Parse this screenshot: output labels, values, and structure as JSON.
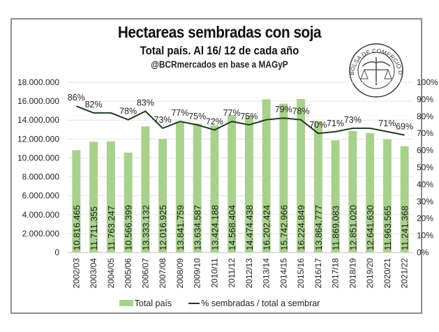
{
  "chart_data": {
    "type": "bar+line",
    "title": "Hectareas sembradas con soja",
    "subtitle": "Total país. Al 16/ 12 de cada año",
    "source": "@BCRmercados en base a MAGyP",
    "logo_text": "BOLSA DE COMERCIO DE ROSARIO",
    "categories": [
      "2002/03",
      "2003/04",
      "2004/05",
      "2005/06",
      "2006/07",
      "2007/08",
      "2008/09",
      "2009/10",
      "2010/11",
      "2011/12",
      "2012/13",
      "2013/14",
      "2014/15",
      "2015/16",
      "2016/17",
      "2017/18",
      "2018/19",
      "2019/20",
      "2020/21",
      "2021/22"
    ],
    "series": [
      {
        "name": "Total país",
        "type": "bar",
        "axis": "left",
        "color": "#a9d18e",
        "values": [
          10816465,
          11711355,
          11763247,
          10566399,
          13333132,
          12016925,
          13841759,
          13634587,
          13424188,
          14568404,
          14474438,
          16202424,
          15742966,
          16224849,
          13864777,
          11869083,
          12851020,
          12641630,
          11963565,
          11241368
        ],
        "labels": [
          "10.816.465",
          "11.711.355",
          "11.763.247",
          "10.566.399",
          "13.333.132",
          "12.016.925",
          "13.841.759",
          "13.634.587",
          "13.424.188",
          "14.568.404",
          "14.474.438",
          "16.202.424",
          "15.742.966",
          "16.224.849",
          "13.864.777",
          "11.869.083",
          "12.851.020",
          "12.641.630",
          "11.963.565",
          "11.241.368"
        ]
      },
      {
        "name": "% sembradas / total a sembrar",
        "type": "line",
        "axis": "right",
        "color": "#1e3a1e",
        "values": [
          86,
          82,
          82,
          78,
          83,
          73,
          77,
          75,
          72,
          77,
          75,
          78,
          79,
          78,
          70,
          71,
          73,
          73,
          71,
          69
        ],
        "labels": [
          "86%",
          "82%",
          "",
          "78%",
          "83%",
          "73%",
          "77%",
          "75%",
          "72%",
          "77%",
          "75%",
          "",
          "79%",
          "78%",
          "70%",
          "71%",
          "73%",
          "",
          "71%",
          "69%"
        ]
      }
    ],
    "ylim_left": [
      0,
      18000000
    ],
    "yticks_left": [
      "0",
      "2.000.000",
      "4.000.000",
      "6.000.000",
      "8.000.000",
      "10.000.000",
      "12.000.000",
      "14.000.000",
      "16.000.000",
      "18.000.000"
    ],
    "ylim_right": [
      0,
      100
    ],
    "yticks_right": [
      "0%",
      "10%",
      "20%",
      "30%",
      "40%",
      "50%",
      "60%",
      "70%",
      "80%",
      "90%",
      "100%"
    ],
    "grid": true,
    "legend_position": "bottom"
  }
}
